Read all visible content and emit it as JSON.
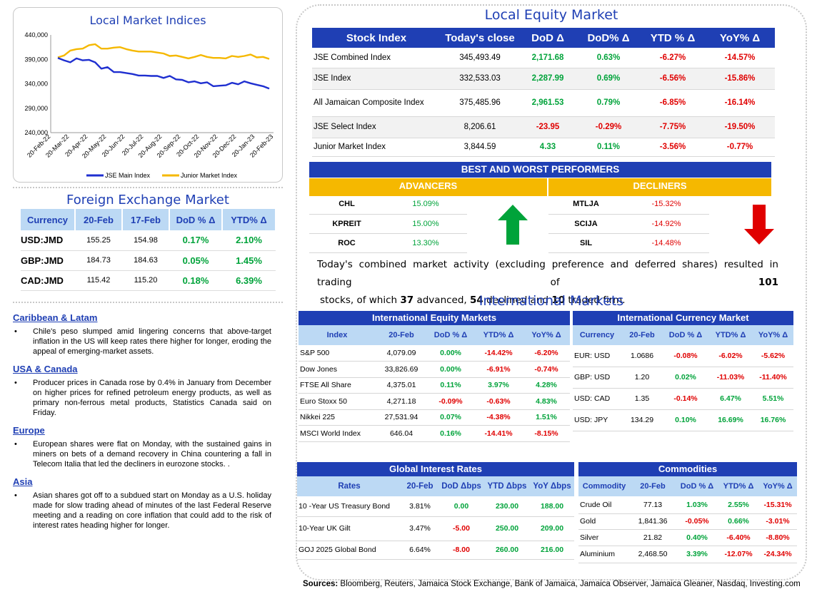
{
  "local_indices": {
    "title": "Local Market Indices",
    "chart_data": {
      "type": "line",
      "title": "Local Market Indices",
      "x_tick_labels": [
        "20-Feb-22",
        "20-Mar-22",
        "20-Apr-22",
        "20-May-22",
        "20-Jun-22",
        "20-Jul-22",
        "20-Aug-22",
        "20-Sep-22",
        "20-Oct-22",
        "20-Nov-22",
        "20-Dec-22",
        "20-Jan-23",
        "20-Feb-23"
      ],
      "y_tick_labels": [
        "440,000",
        "390,000",
        "340,000",
        "290,000",
        "240,000"
      ],
      "ylim": [
        240000,
        440000
      ],
      "series": [
        {
          "name": "JSE Main Index",
          "color": "#1f2fd0",
          "values": [
            393000,
            388000,
            384000,
            392000,
            388000,
            389000,
            384000,
            371000,
            374000,
            364000,
            364000,
            362000,
            360000,
            357000,
            357000,
            356000,
            356000,
            352000,
            356000,
            349000,
            348000,
            343000,
            345000,
            341000,
            343000,
            335000,
            336000,
            337000,
            342000,
            339000,
            345000,
            341000,
            338000,
            335000,
            330000
          ]
        },
        {
          "name": "Junior Market Index",
          "color": "#f5b800",
          "values": [
            394000,
            398000,
            408000,
            411000,
            412000,
            419000,
            421000,
            412000,
            412000,
            414000,
            415000,
            411000,
            408000,
            406000,
            406000,
            406000,
            404000,
            402000,
            397000,
            398000,
            395000,
            392000,
            395000,
            399000,
            395000,
            393000,
            393000,
            392000,
            397000,
            395000,
            397000,
            400000,
            394000,
            395000,
            391000
          ]
        }
      ],
      "legend": "bottom"
    }
  },
  "fx": {
    "title": "Foreign Exchange Market",
    "headers": [
      "Currency",
      "20-Feb",
      "17-Feb",
      "DoD % Δ",
      "YTD% Δ"
    ],
    "rows": [
      [
        "USD:JMD",
        "155.25",
        "154.98",
        "0.17%",
        "2.10%"
      ],
      [
        "GBP:JMD",
        "184.73",
        "184.63",
        "0.05%",
        "1.45%"
      ],
      [
        "CAD:JMD",
        "115.42",
        "115.20",
        "0.18%",
        "6.39%"
      ]
    ]
  },
  "news": [
    {
      "head": "Caribbean & Latam",
      "body": "Chile's peso slumped amid lingering concerns that above-target inflation in the US will keep rates there higher for longer, eroding the appeal of emerging-market assets."
    },
    {
      "head": "USA & Canada",
      "body": "Producer prices in Canada rose by 0.4% in January from December on higher prices for refined petroleum energy products, as well as primary non-ferrous metal products, Statistics Canada said on Friday."
    },
    {
      "head": "Europe",
      "body": "European shares were flat on Monday, with the sustained gains in miners on bets of a demand recovery in China countering a fall in Telecom Italia that led the decliners in eurozone stocks. ."
    },
    {
      "head": "Asia",
      "body": "Asian shares got off to a subdued start on Monday as a U.S. holiday made for slow trading ahead of minutes of the last Federal Reserve meeting and a reading on core inflation that could add to the risk of interest rates heading higher for longer."
    }
  ],
  "bullet_glyph": "•",
  "local_equity": {
    "title": "Local Equity Market",
    "headers": [
      "Stock Index",
      "Today's close",
      "DoD  Δ",
      "DoD% Δ",
      "YTD % Δ",
      "YoY% Δ"
    ],
    "rows": [
      [
        "JSE Combined Index",
        "345,493.49",
        "2,171.68",
        "0.63%",
        "-6.27%",
        "-14.57%"
      ],
      [
        "JSE Index",
        "332,533.03",
        "2,287.99",
        "0.69%",
        "-6.56%",
        "-15.86%"
      ],
      [
        "All Jamaican Composite Index",
        "375,485.96",
        "2,961.53",
        "0.79%",
        "-6.85%",
        "-16.14%"
      ],
      [
        "JSE Select Index",
        "8,206.61",
        "-23.95",
        "-0.29%",
        "-7.75%",
        "-19.50%"
      ],
      [
        "Junior Market Index",
        "3,844.59",
        "4.33",
        "0.11%",
        "-3.56%",
        "-0.77%"
      ]
    ]
  },
  "best_worst": {
    "title": "BEST AND WORST PERFORMERS",
    "advancers_label": "ADVANCERS",
    "decliners_label": "DECLINERS",
    "advancers": [
      [
        "CHL",
        "15.09%"
      ],
      [
        "KPREIT",
        "15.00%"
      ],
      [
        "ROC",
        "13.30%"
      ]
    ],
    "decliners": [
      [
        "MTLJA",
        "-15.32%"
      ],
      [
        "SCIJA",
        "-14.92%"
      ],
      [
        "SIL",
        "-14.48%"
      ]
    ]
  },
  "summary": {
    "p1": "Today's combined market activity (excluding preference and deferred shares) resulted in trading of ",
    "traded": "101",
    "p2": "stocks, of which ",
    "advanced": "37",
    "p3": " advanced, ",
    "declined": "54",
    "p4": " declined and ",
    "firm": "10",
    "p5": " traded firm."
  },
  "international": {
    "title": "International Markets",
    "equity": {
      "title": "International Equity Markets",
      "headers": [
        "Index",
        "20-Feb",
        "DoD % Δ",
        "YTD% Δ",
        "YoY% Δ"
      ],
      "rows": [
        [
          "S&P 500",
          "4,079.09",
          "0.00%",
          "-14.42%",
          "-6.20%"
        ],
        [
          "Dow Jones",
          "33,826.69",
          "0.00%",
          "-6.91%",
          "-0.74%"
        ],
        [
          "FTSE All Share",
          "4,375.01",
          "0.11%",
          "3.97%",
          "4.28%"
        ],
        [
          "Euro Stoxx 50",
          "4,271.18",
          "-0.09%",
          "-0.63%",
          "4.83%"
        ],
        [
          "Nikkei 225",
          "27,531.94",
          "0.07%",
          "-4.38%",
          "1.51%"
        ],
        [
          "MSCI World Index",
          "646.04",
          "0.16%",
          "-14.41%",
          "-8.15%"
        ]
      ]
    },
    "currency": {
      "title": "International Currency Market",
      "headers": [
        "Currency",
        "20-Feb",
        "DoD % Δ",
        "YTD% Δ",
        "YoY% Δ"
      ],
      "rows": [
        [
          "EUR: USD",
          "1.0686",
          "-0.08%",
          "-6.02%",
          "-5.62%"
        ],
        [
          "GBP: USD",
          "1.20",
          "0.02%",
          "-11.03%",
          "-11.40%"
        ],
        [
          "USD: CAD",
          "1.35",
          "-0.14%",
          "6.47%",
          "5.51%"
        ],
        [
          "USD: JPY",
          "134.29",
          "0.10%",
          "16.69%",
          "16.76%"
        ]
      ]
    },
    "rates": {
      "title": "Global Interest Rates",
      "headers": [
        "Rates",
        "20-Feb",
        "DoD Δbps",
        "YTD Δbps",
        "YoY Δbps"
      ],
      "rows": [
        [
          "10 -Year US Treasury Bond",
          "3.81%",
          "0.00",
          "230.00",
          "188.00"
        ],
        [
          "10-Year UK Gilt",
          "3.47%",
          "-5.00",
          "250.00",
          "209.00"
        ],
        [
          "GOJ 2025 Global Bond",
          "6.64%",
          "-8.00",
          "260.00",
          "216.00"
        ]
      ]
    },
    "commodities": {
      "title": "Commodities",
      "headers": [
        "Commodity",
        "20-Feb",
        "DoD % Δ",
        "YTD% Δ",
        "YoY% Δ"
      ],
      "rows": [
        [
          "Crude Oil",
          "77.13",
          "1.03%",
          "2.55%",
          "-15.31%"
        ],
        [
          "Gold",
          "1,841.36",
          "-0.05%",
          "0.66%",
          "-3.01%"
        ],
        [
          "Silver",
          "21.82",
          "0.40%",
          "-6.40%",
          "-8.80%"
        ],
        [
          "Aluminium",
          "2,468.50",
          "3.39%",
          "-12.07%",
          "-24.34%"
        ]
      ]
    }
  },
  "sources": {
    "label": "Sources:",
    "text": " Bloomberg, Reuters, Jamaica Stock Exchange, Bank of Jamaica, Jamaica Observer, Jamaica Gleaner, Nasdaq, Investing.com"
  }
}
